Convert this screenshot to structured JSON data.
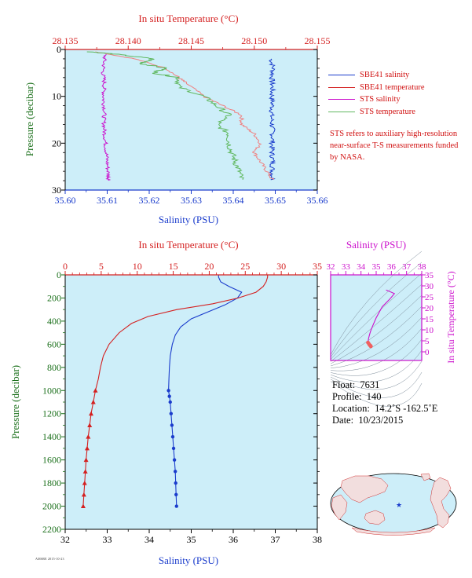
{
  "top_chart": {
    "top_axis_title": "In situ Temperature (°C)",
    "bottom_axis_title": "Salinity (PSU)",
    "left_axis_title": "Pressure (decibar)"
  },
  "legend": {
    "items": [
      {
        "label": "SBE41 salinity",
        "color": "#1a3ccc"
      },
      {
        "label": "SBE41 temperature",
        "color": "#d42020"
      },
      {
        "label": "STS salinity",
        "color": "#cc10cc"
      },
      {
        "label": "STS temperature",
        "color": "#60b860"
      }
    ],
    "note": "STS refers to auxiliary high-resolution near-surface T-S measurements funded by NASA."
  },
  "bottom_chart": {
    "top_axis_title": "In situ Temperature (°C)",
    "bottom_axis_title": "Salinity (PSU)",
    "left_axis_title": "Pressure (decibar)"
  },
  "ts_diagram": {
    "top_axis_title": "Salinity (PSU)",
    "right_axis_title": "In situ Temperature (°C)"
  },
  "float_info": {
    "float_label": "Float:",
    "float_value": "7631",
    "profile_label": "Profile:",
    "profile_value": "140",
    "location_label": "Location:",
    "location_value": "14.2˚S  -162.5˚E",
    "date_label": "Date:",
    "date_value": "10/23/2015"
  },
  "footer_text": "AMSRE 2015-10-23",
  "colors": {
    "plot_bg": "#cdeef9",
    "salinity": "#1a3ccc",
    "temperature": "#d42020",
    "sts_salinity": "#cc10cc",
    "sts_temperature": "#60b860",
    "axis_red": "#d42020",
    "axis_blue": "#1a3ccc",
    "axis_green": "#1a6f1a",
    "axis_magenta": "#cc10cc"
  },
  "chart_data": [
    {
      "type": "line",
      "title": "",
      "xlabel": "Salinity (PSU)",
      "x2label": "In situ Temperature (°C)",
      "ylabel": "Pressure (decibar)",
      "xlim": [
        35.6,
        35.66
      ],
      "x2lim": [
        28.135,
        28.155
      ],
      "ylim": [
        0,
        30
      ],
      "y_inverted": true,
      "x_ticks": [
        "35.60",
        "35.61",
        "35.62",
        "35.63",
        "35.64",
        "35.65",
        "35.66"
      ],
      "x2_ticks": [
        "28.135",
        "28.140",
        "28.145",
        "28.150",
        "28.155"
      ],
      "y_ticks": [
        "0",
        "10",
        "20",
        "30"
      ],
      "series": [
        {
          "name": "SBE41 salinity",
          "axis": "x",
          "points": [
            [
              35.649,
              2
            ],
            [
              35.6495,
              4
            ],
            [
              35.6492,
              6
            ],
            [
              35.6493,
              8
            ],
            [
              35.6492,
              10
            ],
            [
              35.6493,
              12
            ],
            [
              35.6491,
              14
            ],
            [
              35.6492,
              16
            ],
            [
              35.6494,
              18
            ],
            [
              35.6493,
              20
            ],
            [
              35.6492,
              22
            ],
            [
              35.6494,
              24
            ],
            [
              35.6493,
              26
            ],
            [
              35.6494,
              28
            ]
          ]
        },
        {
          "name": "SBE41 temperature",
          "axis": "x2",
          "points": [
            [
              28.1375,
              0.5
            ],
            [
              28.1405,
              2
            ],
            [
              28.143,
              4
            ],
            [
              28.144,
              6
            ],
            [
              28.1445,
              7
            ],
            [
              28.146,
              10
            ],
            [
              28.1475,
              12
            ],
            [
              28.149,
              14
            ],
            [
              28.149,
              16
            ],
            [
              28.15,
              18
            ],
            [
              28.1505,
              20
            ],
            [
              28.15,
              22
            ],
            [
              28.1505,
              24
            ],
            [
              28.151,
              26
            ],
            [
              28.1515,
              28
            ]
          ]
        },
        {
          "name": "STS salinity",
          "axis": "x",
          "points": [
            [
              35.6095,
              1
            ],
            [
              35.6092,
              3
            ],
            [
              35.609,
              5
            ],
            [
              35.6093,
              7
            ],
            [
              35.6092,
              9
            ],
            [
              35.6091,
              11
            ],
            [
              35.6094,
              13
            ],
            [
              35.6092,
              15
            ],
            [
              35.6093,
              17
            ],
            [
              35.6095,
              19
            ],
            [
              35.6097,
              21
            ],
            [
              35.6099,
              23
            ],
            [
              35.6101,
              25
            ],
            [
              35.6103,
              27
            ],
            [
              35.6104,
              28
            ]
          ]
        },
        {
          "name": "STS temperature",
          "axis": "x2",
          "points": [
            [
              28.137,
              0.5
            ],
            [
              28.139,
              1
            ],
            [
              28.142,
              2
            ],
            [
              28.141,
              3
            ],
            [
              28.143,
              4
            ],
            [
              28.142,
              5
            ],
            [
              28.144,
              6
            ],
            [
              28.144,
              8
            ],
            [
              28.146,
              10
            ],
            [
              28.147,
              12
            ],
            [
              28.148,
              14
            ],
            [
              28.147,
              16
            ],
            [
              28.148,
              18
            ],
            [
              28.148,
              20
            ],
            [
              28.1482,
              22
            ],
            [
              28.1485,
              24
            ],
            [
              28.1488,
              26
            ],
            [
              28.149,
              28
            ]
          ]
        }
      ]
    },
    {
      "type": "line",
      "title": "",
      "xlabel": "Salinity (PSU)",
      "x2label": "In situ Temperature (°C)",
      "ylabel": "Pressure (decibar)",
      "xlim": [
        32,
        38
      ],
      "x2lim": [
        0,
        35
      ],
      "ylim": [
        0,
        2200
      ],
      "y_inverted": true,
      "x_ticks": [
        "32",
        "33",
        "34",
        "35",
        "36",
        "37",
        "38"
      ],
      "x2_ticks": [
        "0",
        "5",
        "10",
        "15",
        "20",
        "25",
        "30",
        "35"
      ],
      "y_ticks": [
        "0",
        "200",
        "400",
        "600",
        "800",
        "1000",
        "1200",
        "1400",
        "1600",
        "1800",
        "2000",
        "2200"
      ],
      "series": [
        {
          "name": "SBE41 salinity",
          "axis": "x",
          "points": [
            [
              35.65,
              0
            ],
            [
              35.65,
              20
            ],
            [
              35.7,
              60
            ],
            [
              35.9,
              100
            ],
            [
              36.2,
              150
            ],
            [
              36.1,
              200
            ],
            [
              35.8,
              260
            ],
            [
              35.4,
              320
            ],
            [
              35.0,
              380
            ],
            [
              34.75,
              450
            ],
            [
              34.62,
              520
            ],
            [
              34.55,
              600
            ],
            [
              34.5,
              700
            ],
            [
              34.48,
              800
            ],
            [
              34.47,
              900
            ],
            [
              34.46,
              1000
            ]
          ],
          "marked_points": [
            [
              34.46,
              1000
            ],
            [
              34.48,
              1050
            ],
            [
              34.5,
              1100
            ],
            [
              34.52,
              1200
            ],
            [
              34.54,
              1300
            ],
            [
              34.56,
              1400
            ],
            [
              34.58,
              1500
            ],
            [
              34.6,
              1600
            ],
            [
              34.62,
              1700
            ],
            [
              34.63,
              1800
            ],
            [
              34.64,
              1900
            ],
            [
              34.65,
              2000
            ]
          ]
        },
        {
          "name": "SBE41 temperature",
          "axis": "x2",
          "points": [
            [
              28.1,
              0
            ],
            [
              28.1,
              20
            ],
            [
              27.9,
              60
            ],
            [
              27.5,
              100
            ],
            [
              26.5,
              150
            ],
            [
              24.0,
              200
            ],
            [
              20.5,
              250
            ],
            [
              15.5,
              300
            ],
            [
              11.5,
              360
            ],
            [
              9.2,
              420
            ],
            [
              7.5,
              500
            ],
            [
              6.1,
              600
            ],
            [
              5.3,
              700
            ],
            [
              4.9,
              800
            ],
            [
              4.6,
              900
            ],
            [
              4.2,
              1000
            ]
          ],
          "marked_points": [
            [
              4.2,
              1000
            ],
            [
              3.9,
              1100
            ],
            [
              3.6,
              1200
            ],
            [
              3.4,
              1300
            ],
            [
              3.2,
              1400
            ],
            [
              3.05,
              1500
            ],
            [
              2.9,
              1600
            ],
            [
              2.8,
              1700
            ],
            [
              2.7,
              1800
            ],
            [
              2.6,
              1900
            ],
            [
              2.5,
              2000
            ]
          ]
        }
      ]
    },
    {
      "type": "line",
      "title": "",
      "xlabel": "Salinity (PSU)",
      "ylabel": "In situ Temperature (°C)",
      "xlim": [
        32,
        38
      ],
      "ylim": [
        -2,
        35
      ],
      "x_ticks": [
        "32",
        "33",
        "34",
        "35",
        "36",
        "37",
        "38"
      ],
      "y_ticks": [
        "0",
        "5",
        "10",
        "15",
        "20",
        "25",
        "30",
        "35"
      ],
      "series": [
        {
          "name": "T-S profile",
          "points": [
            [
              35.65,
              28.1
            ],
            [
              36.2,
              26.5
            ],
            [
              35.9,
              24.0
            ],
            [
              35.4,
              20.5
            ],
            [
              35.0,
              15.5
            ],
            [
              34.75,
              11.5
            ],
            [
              34.62,
              9.2
            ],
            [
              34.55,
              7.5
            ],
            [
              34.5,
              6.1
            ],
            [
              34.47,
              4.9
            ],
            [
              34.46,
              4.2
            ],
            [
              34.52,
              3.6
            ],
            [
              34.56,
              3.2
            ],
            [
              34.6,
              2.9
            ],
            [
              34.63,
              2.7
            ],
            [
              34.65,
              2.5
            ]
          ]
        }
      ]
    }
  ]
}
